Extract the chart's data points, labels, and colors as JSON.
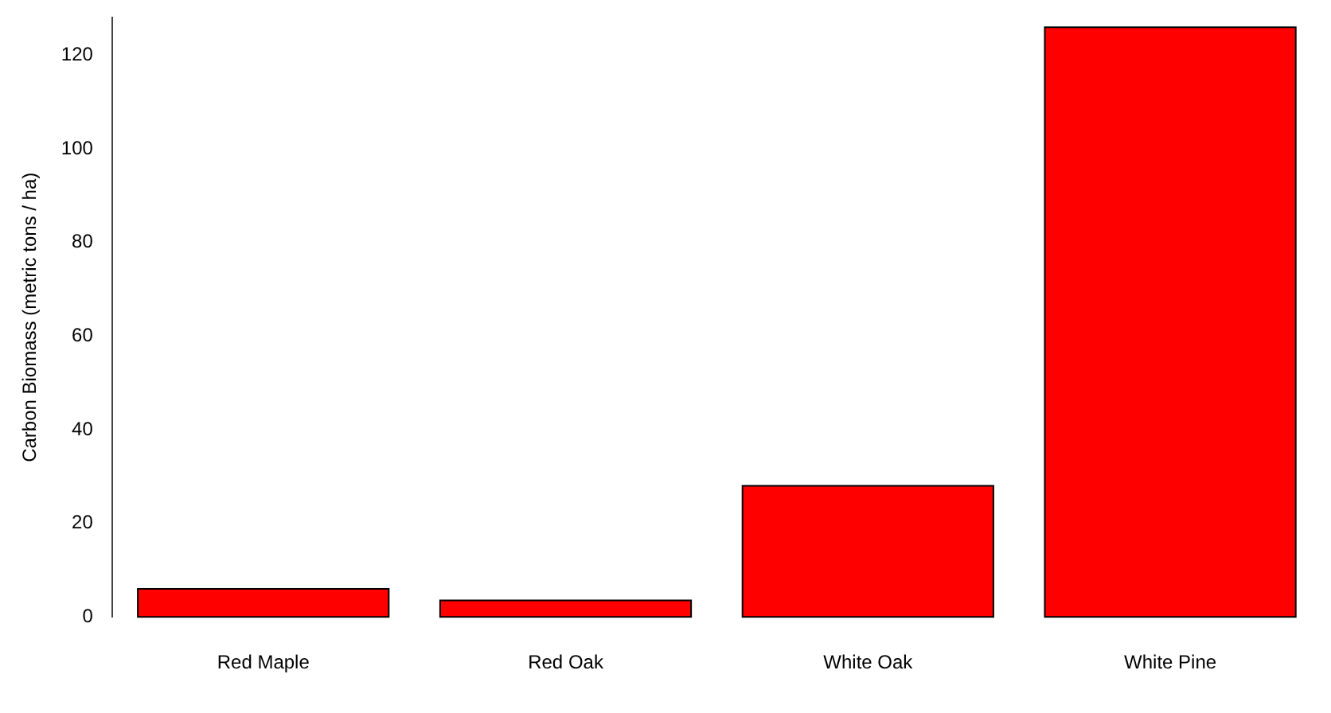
{
  "chart_data": {
    "type": "bar",
    "ylabel": "Carbon Biomass (metric tons / ha)",
    "categories": [
      "Red Maple",
      "Red Oak",
      "White Oak",
      "White Pine"
    ],
    "values": [
      6,
      3.5,
      28,
      126
    ],
    "color": "#ff0000",
    "ylim": [
      0,
      128
    ],
    "yticks": [
      0,
      20,
      40,
      60,
      80,
      100,
      120
    ],
    "grid": false,
    "legend": false
  }
}
